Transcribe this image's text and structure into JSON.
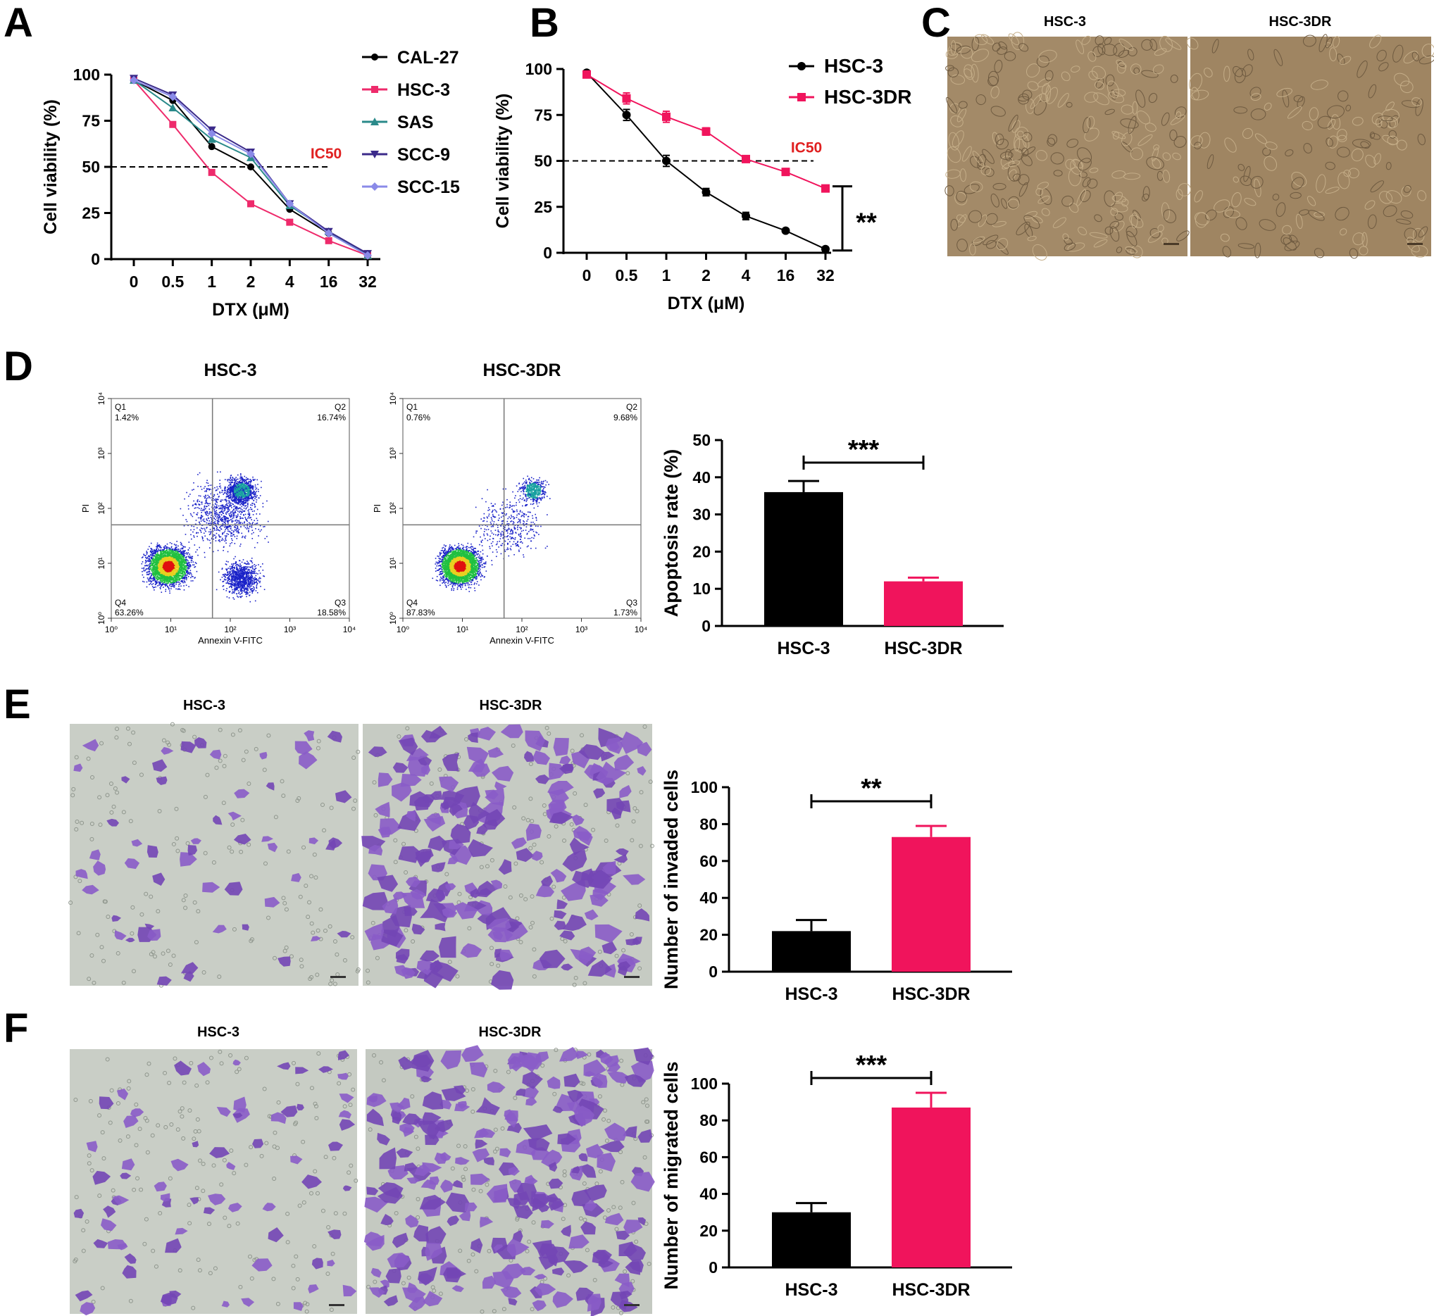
{
  "figure": {
    "panel_labels": [
      "A",
      "B",
      "C",
      "D",
      "E",
      "F"
    ]
  },
  "chart_data": [
    {
      "id": "A",
      "type": "line",
      "x_categories": [
        "0",
        "0.5",
        "1",
        "2",
        "4",
        "16",
        "32"
      ],
      "xlabel": "DTX (μM)",
      "ylabel": "Cell viability (%)",
      "ylim": [
        0,
        100
      ],
      "yticks": [
        0,
        25,
        50,
        75,
        100
      ],
      "reference_line": {
        "y": 50,
        "label": "IC50",
        "style": "dashed"
      },
      "legend_position": "right",
      "series": [
        {
          "name": "CAL-27",
          "color": "#000000",
          "marker": "circle",
          "values": [
            97,
            86,
            61,
            50,
            27,
            14,
            3
          ]
        },
        {
          "name": "HSC-3",
          "color": "#ee2a6b",
          "marker": "square",
          "values": [
            97,
            73,
            47,
            30,
            20,
            10,
            2
          ]
        },
        {
          "name": "SAS",
          "color": "#2a8a8a",
          "marker": "triangle-up",
          "values": [
            97,
            82,
            65,
            55,
            29,
            15,
            2
          ]
        },
        {
          "name": "SCC-9",
          "color": "#3b2a8a",
          "marker": "triangle-down",
          "values": [
            98,
            89,
            70,
            58,
            30,
            15,
            3
          ]
        },
        {
          "name": "SCC-15",
          "color": "#8a8ae8",
          "marker": "diamond",
          "values": [
            97,
            88,
            68,
            57,
            30,
            14,
            2
          ]
        }
      ]
    },
    {
      "id": "B",
      "type": "line",
      "x_categories": [
        "0",
        "0.5",
        "1",
        "2",
        "4",
        "16",
        "32"
      ],
      "xlabel": "DTX (μM)",
      "ylabel": "Cell viability (%)",
      "ylim": [
        0,
        100
      ],
      "yticks": [
        0,
        25,
        50,
        75,
        100
      ],
      "reference_line": {
        "y": 50,
        "label": "IC50",
        "style": "dashed"
      },
      "significance": "**",
      "legend_position": "top-right",
      "series": [
        {
          "name": "HSC-3",
          "color": "#000000",
          "marker": "circle",
          "values": [
            98,
            75,
            50,
            33,
            20,
            12,
            2
          ],
          "errors": [
            1,
            3,
            3,
            2,
            2,
            1,
            1
          ]
        },
        {
          "name": "HSC-3DR",
          "color": "#f0145c",
          "marker": "square",
          "values": [
            97,
            84,
            74,
            66,
            51,
            44,
            35
          ],
          "errors": [
            1,
            3,
            3,
            2,
            1,
            1,
            1
          ]
        }
      ]
    },
    {
      "id": "D-flow",
      "type": "scatter",
      "xlabel": "Annexin V-FITC",
      "ylabel": "PI",
      "axis_scale": "log",
      "axis_range": [
        1,
        10000
      ],
      "panels": [
        {
          "title": "HSC-3",
          "Q1": "1.42%",
          "Q2": "16.74%",
          "Q3": "18.58%",
          "Q4": "63.26%"
        },
        {
          "title": "HSC-3DR",
          "Q1": "0.76%",
          "Q2": "9.68%",
          "Q3": "1.73%",
          "Q4": "87.83%"
        }
      ]
    },
    {
      "id": "D",
      "type": "bar",
      "categories": [
        "HSC-3",
        "HSC-3DR"
      ],
      "values": [
        36,
        12
      ],
      "errors": [
        3,
        1
      ],
      "colors": [
        "#000000",
        "#f0145c"
      ],
      "ylabel": "Apoptosis rate (%)",
      "ylim": [
        0,
        50
      ],
      "yticks": [
        0,
        10,
        20,
        30,
        40,
        50
      ],
      "significance": "***"
    },
    {
      "id": "E",
      "type": "bar",
      "categories": [
        "HSC-3",
        "HSC-3DR"
      ],
      "values": [
        22,
        73
      ],
      "errors": [
        6,
        6
      ],
      "colors": [
        "#000000",
        "#f0145c"
      ],
      "ylabel": "Number of invaded cells",
      "ylim": [
        0,
        100
      ],
      "yticks": [
        0,
        20,
        40,
        60,
        80,
        100
      ],
      "significance": "**"
    },
    {
      "id": "F",
      "type": "bar",
      "categories": [
        "HSC-3",
        "HSC-3DR"
      ],
      "values": [
        30,
        87
      ],
      "errors": [
        5,
        8
      ],
      "colors": [
        "#000000",
        "#f0145c"
      ],
      "ylabel": "Number of migrated cells",
      "ylim": [
        0,
        100
      ],
      "yticks": [
        0,
        20,
        40,
        60,
        80,
        100
      ],
      "significance": "***"
    }
  ],
  "micrographs": {
    "C": {
      "left": "HSC-3",
      "right": "HSC-3DR"
    },
    "E": {
      "left": "HSC-3",
      "right": "HSC-3DR"
    },
    "F": {
      "left": "HSC-3",
      "right": "HSC-3DR"
    }
  }
}
